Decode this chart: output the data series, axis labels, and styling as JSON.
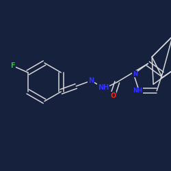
{
  "background_color": "#16213e",
  "bond_color": "#d8d8d8",
  "atom_colors": {
    "N": "#3333ff",
    "O": "#ff2200",
    "F": "#33bb33",
    "C": "#d8d8d8"
  },
  "figsize": [
    2.5,
    2.5
  ],
  "dpi": 100
}
